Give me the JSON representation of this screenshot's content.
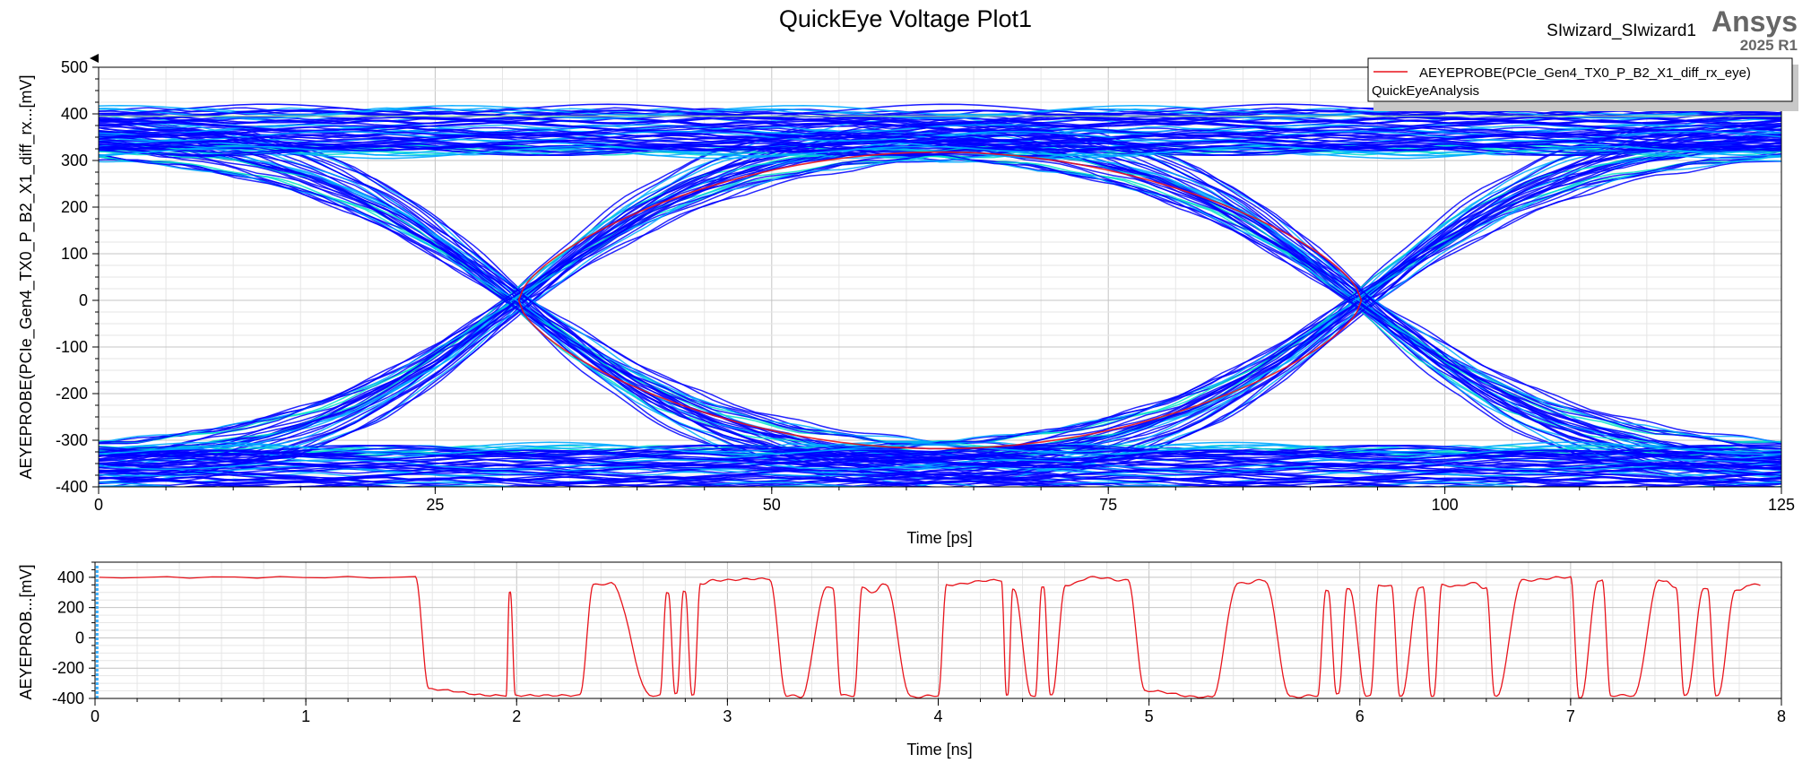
{
  "page": {
    "title": "QuickEye Voltage Plot1",
    "design": "SIwizard_SIwizard1",
    "brand": "Ansys",
    "version": "2025 R1"
  },
  "legend": {
    "entry": "AEYEPROBE(PCIe_Gen4_TX0_P_B2_X1_diff_rx_eye)",
    "sub": "QuickEyeAnalysis",
    "line_color": "#e8141c"
  },
  "chart_data": [
    {
      "type": "line",
      "plot": "eye",
      "title": "QuickEye Voltage Plot1",
      "xlabel": "Time [ps]",
      "ylabel": "AEYEPROBE(PCIe_Gen4_TX0_P_B2_X1_diff_rx...[mV]",
      "xlim": [
        0,
        125
      ],
      "ylim": [
        -400,
        500
      ],
      "xticks": [
        "0",
        "25",
        "50",
        "75",
        "100",
        "125"
      ],
      "yticks": [
        "500",
        "400",
        "300",
        "200",
        "100",
        "0",
        "-100",
        "-200",
        "-300",
        "-400"
      ],
      "grid": true,
      "legend_position": "top-right",
      "colors": {
        "density_low": "#0000ff",
        "density_mid": "#00aaff",
        "density_high": "#00e0c8",
        "contour": "#e8141c"
      },
      "eye_levels_mV": [
        330,
        360,
        395
      ],
      "crossing_times_ps": [
        31.2,
        93.8
      ],
      "eye_opening_mV": [
        -318,
        318
      ]
    },
    {
      "type": "line",
      "plot": "transient",
      "xlabel": "Time [ns]",
      "ylabel": "AEYEPROB...[mV]",
      "xlim": [
        0,
        8
      ],
      "ylim": [
        -400,
        500
      ],
      "xticks": [
        "0",
        "1",
        "2",
        "3",
        "4",
        "5",
        "6",
        "7",
        "8"
      ],
      "yticks": [
        "400",
        "200",
        "0",
        "-200",
        "-400"
      ],
      "grid": true,
      "series": [
        {
          "color": "#e8141c",
          "x": [
            0.02,
            1.52,
            1.6,
            1.95,
            1.97,
            2.0,
            2.3,
            2.38,
            2.45,
            2.68,
            2.72,
            2.76,
            2.8,
            2.84,
            2.88,
            2.95,
            3.2,
            3.3,
            3.35,
            3.5,
            3.55,
            3.6,
            3.65,
            3.7,
            3.75,
            3.9,
            4.0,
            4.05,
            4.3,
            4.33,
            4.36,
            4.46,
            4.5,
            4.54,
            4.62,
            4.75,
            4.9,
            5.0,
            5.3,
            5.45,
            5.55,
            5.7,
            5.8,
            5.85,
            5.9,
            5.95,
            6.05,
            6.1,
            6.15,
            6.2,
            6.3,
            6.35,
            6.4,
            6.45,
            6.55,
            6.6,
            6.65,
            6.8,
            7.0,
            7.05,
            7.15,
            7.2,
            7.3,
            7.45,
            7.5,
            7.55,
            7.65,
            7.7,
            7.8,
            7.85,
            7.9
          ],
          "y": [
            400,
            400,
            -340,
            -380,
            300,
            -380,
            -380,
            350,
            360,
            -380,
            300,
            -370,
            310,
            -380,
            360,
            380,
            390,
            -380,
            -390,
            330,
            -380,
            -380,
            330,
            300,
            360,
            -390,
            -380,
            350,
            380,
            -380,
            320,
            -380,
            330,
            -370,
            350,
            400,
            380,
            -350,
            -390,
            360,
            380,
            -390,
            -380,
            310,
            -370,
            330,
            -380,
            350,
            340,
            -380,
            330,
            -380,
            350,
            340,
            360,
            330,
            -380,
            380,
            400,
            -390,
            380,
            -380,
            -380,
            380,
            330,
            -380,
            320,
            -380,
            310,
            350,
            350
          ]
        }
      ]
    }
  ]
}
